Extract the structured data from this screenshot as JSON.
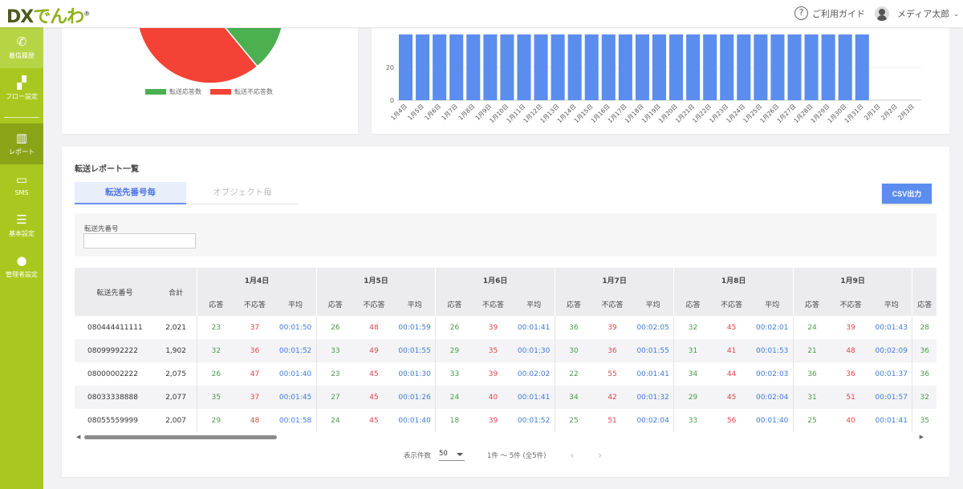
{
  "header": {
    "logo_text_dx": "DX",
    "logo_text_rest": "でんわ",
    "logo_mark": "®",
    "help_label": "ご利用ガイド",
    "user_name": "メディア太郎"
  },
  "sidebar": {
    "items": [
      {
        "label": "着信履歴",
        "icon": "phone-icon"
      },
      {
        "label": "フロー設定",
        "icon": "flow-icon"
      },
      {
        "label": "レポート",
        "icon": "report-chart-icon",
        "active": true
      },
      {
        "label": "SMS",
        "icon": "message-icon"
      },
      {
        "label": "基本設定",
        "icon": "sliders-icon"
      },
      {
        "label": "管理者設定",
        "icon": "admin-shield-icon"
      }
    ]
  },
  "chart_data": [
    {
      "type": "pie",
      "legend": [
        "転送応答数",
        "転送不応答数"
      ],
      "values": [
        39,
        61
      ],
      "colors": [
        "#4caf50",
        "#f44336"
      ],
      "legend_placement": "bottom"
    },
    {
      "type": "bar",
      "categories": [
        "1月4日",
        "1月5日",
        "1月6日",
        "1月7日",
        "1月8日",
        "1月9日",
        "1月10日",
        "1月11日",
        "1月12日",
        "1月13日",
        "1月14日",
        "1月15日",
        "1月16日",
        "1月17日",
        "1月18日",
        "1月19日",
        "1月20日",
        "1月21日",
        "1月22日",
        "1月23日",
        "1月24日",
        "1月25日",
        "1月26日",
        "1月27日",
        "1月28日",
        "1月29日",
        "1月30日",
        "1月31日",
        "2月1日",
        "2月2日",
        "2月3日"
      ],
      "values": [
        40,
        40,
        40,
        40,
        40,
        40,
        40,
        40,
        40,
        40,
        40,
        40,
        40,
        40,
        40,
        40,
        40,
        40,
        40,
        40,
        40,
        40,
        40,
        40,
        40,
        40,
        40,
        40,
        0,
        0,
        0
      ],
      "yticks": [
        0,
        20
      ],
      "color": "#5b8def",
      "grid": true
    }
  ],
  "list": {
    "title": "転送レポート一覧",
    "tabs": [
      "転送先番号毎",
      "オブジェクト毎"
    ],
    "csv_label": "CSV出力",
    "filter_label": "転送先番号",
    "filter_value": ""
  },
  "table": {
    "col_number": "転送先番号",
    "col_total": "合計",
    "sub_headers": [
      "応答",
      "不応答",
      "平均"
    ],
    "days": [
      "1月4日",
      "1月5日",
      "1月6日",
      "1月7日",
      "1月8日",
      "1月9日"
    ],
    "rows": [
      {
        "number": "080444411111",
        "total": "2,021",
        "cells": [
          [
            23,
            37,
            "00:01:50"
          ],
          [
            26,
            48,
            "00:01:59"
          ],
          [
            26,
            39,
            "00:01:41"
          ],
          [
            36,
            39,
            "00:02:05"
          ],
          [
            32,
            45,
            "00:02:01"
          ],
          [
            24,
            39,
            "00:01:43"
          ]
        ],
        "next_answered": 28
      },
      {
        "number": "08099992222",
        "total": "1,902",
        "cells": [
          [
            32,
            36,
            "00:01:52"
          ],
          [
            33,
            49,
            "00:01:55"
          ],
          [
            29,
            35,
            "00:01:30"
          ],
          [
            30,
            36,
            "00:01:55"
          ],
          [
            31,
            41,
            "00:01:53"
          ],
          [
            21,
            48,
            "00:02:09"
          ]
        ],
        "next_answered": 36
      },
      {
        "number": "08000002222",
        "total": "2,075",
        "cells": [
          [
            26,
            47,
            "00:01:40"
          ],
          [
            23,
            45,
            "00:01:30"
          ],
          [
            33,
            39,
            "00:02:02"
          ],
          [
            22,
            55,
            "00:01:41"
          ],
          [
            34,
            44,
            "00:02:03"
          ],
          [
            36,
            36,
            "00:01:37"
          ]
        ],
        "next_answered": 36
      },
      {
        "number": "08033338888",
        "total": "2,077",
        "cells": [
          [
            35,
            37,
            "00:01:45"
          ],
          [
            27,
            45,
            "00:01:26"
          ],
          [
            24,
            40,
            "00:01:41"
          ],
          [
            34,
            42,
            "00:01:32"
          ],
          [
            29,
            45,
            "00:02:04"
          ],
          [
            31,
            51,
            "00:01:57"
          ]
        ],
        "next_answered": 32
      },
      {
        "number": "08055559999",
        "total": "2,007",
        "cells": [
          [
            29,
            48,
            "00:01:58"
          ],
          [
            24,
            45,
            "00:01:40"
          ],
          [
            18,
            39,
            "00:01:52"
          ],
          [
            25,
            51,
            "00:02:04"
          ],
          [
            33,
            56,
            "00:01:40"
          ],
          [
            25,
            40,
            "00:01:41"
          ]
        ],
        "next_answered": 35
      }
    ]
  },
  "pager": {
    "per_page_label": "表示件数",
    "per_page": "50",
    "range": "1件 〜 5件 (全5件)",
    "prev": "‹",
    "next": "›"
  }
}
